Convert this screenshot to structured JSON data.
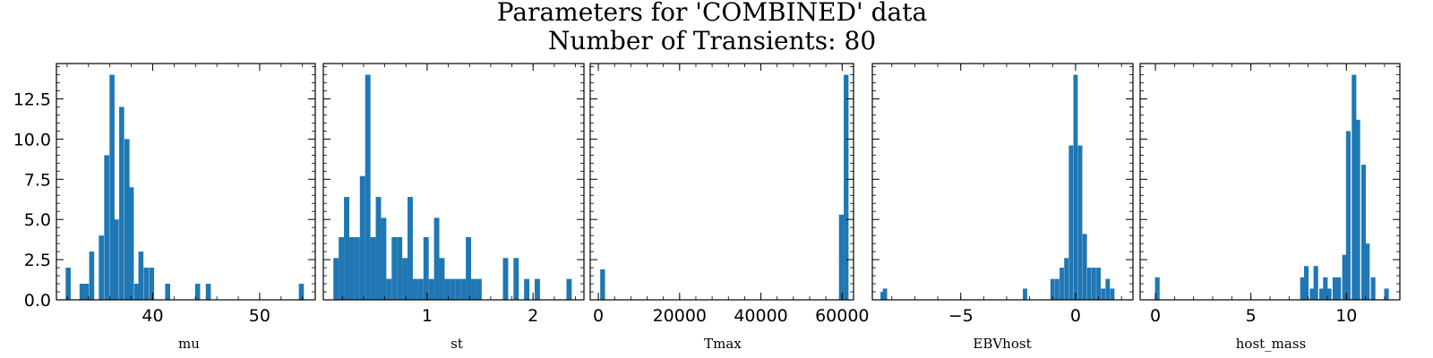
{
  "figure": {
    "title_line1": "Parameters for 'COMBINED' data",
    "title_line2": "Number of Transients: 80",
    "bar_color": "#1f77b4"
  },
  "chart_data": [
    {
      "type": "bar",
      "xlabel": "mu",
      "xlim": [
        31.0,
        55.2
      ],
      "ylim": [
        0,
        14.7
      ],
      "xticks": [
        40,
        50
      ],
      "xtick_labels": [
        "40",
        "50"
      ],
      "yticks": [
        0,
        2.5,
        5,
        7.5,
        10,
        12.5
      ],
      "ytick_labels": [
        "0.0",
        "2.5",
        "5.0",
        "7.5",
        "10.0",
        "12.5"
      ],
      "bin_width": 0.47,
      "bars": [
        [
          32.1,
          2
        ],
        [
          33.4,
          1
        ],
        [
          33.8,
          1
        ],
        [
          34.3,
          3
        ],
        [
          35.2,
          4
        ],
        [
          35.7,
          9
        ],
        [
          36.2,
          14
        ],
        [
          36.6,
          5
        ],
        [
          37.1,
          12
        ],
        [
          37.6,
          10
        ],
        [
          38.0,
          7
        ],
        [
          38.5,
          1
        ],
        [
          38.9,
          3
        ],
        [
          39.4,
          2
        ],
        [
          39.9,
          2
        ],
        [
          41.4,
          1
        ],
        [
          44.2,
          1
        ],
        [
          45.2,
          1
        ],
        [
          53.9,
          1
        ]
      ]
    },
    {
      "type": "bar",
      "xlabel": "st",
      "xlim": [
        0.02,
        2.48
      ],
      "ylim": [
        0,
        14.7
      ],
      "xticks": [
        1,
        2
      ],
      "xtick_labels": [
        "1",
        "2"
      ],
      "bin_width": 0.05,
      "bars": [
        [
          0.14,
          2.6
        ],
        [
          0.19,
          3.9
        ],
        [
          0.24,
          6.4
        ],
        [
          0.29,
          3.9
        ],
        [
          0.34,
          3.9
        ],
        [
          0.39,
          7.7
        ],
        [
          0.44,
          14
        ],
        [
          0.49,
          3.9
        ],
        [
          0.54,
          6.4
        ],
        [
          0.59,
          5.1
        ],
        [
          0.64,
          1.3
        ],
        [
          0.69,
          3.9
        ],
        [
          0.74,
          3.9
        ],
        [
          0.79,
          2.6
        ],
        [
          0.84,
          6.4
        ],
        [
          0.89,
          1.3
        ],
        [
          0.94,
          1.3
        ],
        [
          0.99,
          3.9
        ],
        [
          1.04,
          1.3
        ],
        [
          1.09,
          5.1
        ],
        [
          1.14,
          2.6
        ],
        [
          1.19,
          1.3
        ],
        [
          1.24,
          1.3
        ],
        [
          1.29,
          1.3
        ],
        [
          1.34,
          1.3
        ],
        [
          1.39,
          3.9
        ],
        [
          1.44,
          1.3
        ],
        [
          1.49,
          1.3
        ],
        [
          1.74,
          2.6
        ],
        [
          1.84,
          2.6
        ],
        [
          1.94,
          1.3
        ],
        [
          2.04,
          1.3
        ],
        [
          2.34,
          1.3
        ]
      ]
    },
    {
      "type": "bar",
      "xlabel": "Tmax",
      "xlim": [
        -2000,
        62800
      ],
      "ylim": [
        0,
        14.7
      ],
      "xticks": [
        0,
        20000,
        40000,
        60000
      ],
      "xtick_labels": [
        "0",
        "20000",
        "40000",
        "60000"
      ],
      "bin_width": 1180,
      "bars": [
        [
          1050,
          1.9
        ],
        [
          59800,
          5.3
        ],
        [
          60980,
          14
        ]
      ]
    },
    {
      "type": "bar",
      "xlabel": "EBVhost",
      "xlim": [
        -8.85,
        2.5
      ],
      "ylim": [
        0,
        14.7
      ],
      "xticks": [
        -5,
        0
      ],
      "xtick_labels": [
        "−5",
        "0"
      ],
      "bin_width": 0.19,
      "bars": [
        [
          -8.4,
          0.5
        ],
        [
          -8.3,
          0.7
        ],
        [
          -2.2,
          0.7
        ],
        [
          -1.0,
          1.3
        ],
        [
          -0.8,
          1.3
        ],
        [
          -0.6,
          2.0
        ],
        [
          -0.4,
          2.6
        ],
        [
          -0.2,
          9.6
        ],
        [
          0.0,
          14
        ],
        [
          0.2,
          9.6
        ],
        [
          0.4,
          4.1
        ],
        [
          0.6,
          2.0
        ],
        [
          0.8,
          2.0
        ],
        [
          1.0,
          2.0
        ],
        [
          1.2,
          0.7
        ],
        [
          1.4,
          1.3
        ],
        [
          1.6,
          0.7
        ]
      ]
    },
    {
      "type": "bar",
      "xlabel": "host_mass",
      "xlim": [
        -0.8,
        12.8
      ],
      "ylim": [
        0,
        14.7
      ],
      "xticks": [
        0,
        5,
        10
      ],
      "xtick_labels": [
        "0",
        "5",
        "10"
      ],
      "bin_width": 0.24,
      "bars": [
        [
          0.1,
          1.4
        ],
        [
          7.7,
          1.4
        ],
        [
          7.9,
          2.1
        ],
        [
          8.2,
          0.7
        ],
        [
          8.4,
          2.1
        ],
        [
          8.7,
          0.7
        ],
        [
          8.9,
          1.4
        ],
        [
          9.1,
          0.7
        ],
        [
          9.4,
          1.4
        ],
        [
          9.6,
          1.4
        ],
        [
          9.9,
          2.8
        ],
        [
          10.1,
          10.5
        ],
        [
          10.4,
          14
        ],
        [
          10.6,
          11.2
        ],
        [
          10.9,
          8.4
        ],
        [
          11.1,
          3.5
        ],
        [
          11.4,
          1.4
        ],
        [
          12.1,
          0.7
        ]
      ]
    }
  ]
}
